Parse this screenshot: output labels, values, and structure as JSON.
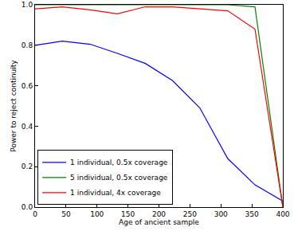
{
  "chart_data": {
    "type": "line",
    "x_label": "Age of ancient sample",
    "y_label": "Power to reject continuity",
    "xlim": [
      0,
      400
    ],
    "ylim": [
      0,
      1.0
    ],
    "xticks": [
      0,
      50,
      100,
      150,
      200,
      250,
      300,
      350,
      400
    ],
    "yticks": [
      {
        "value": 0,
        "label": "0.0"
      },
      {
        "value": 0.2,
        "label": "0.2"
      },
      {
        "value": 0.4,
        "label": "0.4"
      },
      {
        "value": 0.6,
        "label": "0.6"
      },
      {
        "value": 0.8,
        "label": "0.8"
      },
      {
        "value": 1.0,
        "label": "1.0"
      }
    ],
    "grid": false,
    "legend": "lower left",
    "x": [
      0,
      44,
      89,
      133,
      178,
      222,
      266,
      311,
      355,
      400
    ],
    "series": [
      {
        "name": "1 individual, 0.5x coverage",
        "color": "#0000ff",
        "values": [
          0.8,
          0.82,
          0.805,
          0.76,
          0.71,
          0.625,
          0.49,
          0.24,
          0.11,
          0.03
        ]
      },
      {
        "name": "5 individual, 0.5x coverage",
        "color": "#008000",
        "values": [
          1.0,
          1.0,
          1.0,
          1.0,
          1.0,
          1.0,
          1.0,
          1.0,
          0.99,
          0.0
        ]
      },
      {
        "name": "1 individual, 4x coverage",
        "color": "#ff0000",
        "values": [
          0.98,
          0.99,
          0.975,
          0.955,
          0.99,
          0.99,
          0.98,
          0.97,
          0.88,
          0.0
        ]
      }
    ]
  }
}
